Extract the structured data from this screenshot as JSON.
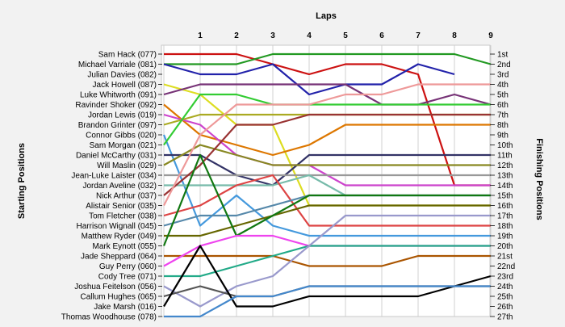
{
  "chart_data": {
    "type": "line",
    "title": "Laps",
    "ylabel_left": "Starting Positions",
    "ylabel_right": "Finishing Positions",
    "x": [
      0,
      1,
      2,
      3,
      4,
      5,
      6,
      7,
      8,
      9
    ],
    "x_tick_labels": [
      "",
      "1",
      "2",
      "3",
      "4",
      "5",
      "6",
      "7",
      "8",
      "9"
    ],
    "y_range": [
      1,
      27
    ],
    "grid": "vertical",
    "start_labels": [
      "Sam Hack (077)",
      "Michael Varriale (081)",
      "Julian Davies (082)",
      "Jack Howell (087)",
      "Luke Whitworth (091)",
      "Ravinder Shoker (092)",
      "Jordan Lewis (019)",
      "Brandon Grinter (097)",
      "Connor Gibbs (020)",
      "Sam Morgan (021)",
      "Daniel McCarthy (031)",
      "Will Maslin (029)",
      "Jean-Luke Laister (034)",
      "Jordan Aveline (032)",
      "Nick Arthur (037)",
      "Alistair Senior (035)",
      "Tom Fletcher (038)",
      "Harrison Wignall (045)",
      "Matthew Ryder (049)",
      "Mark Eynott (055)",
      "Jade Sheppard (064)",
      "Guy Perry (060)",
      "Cody Tree (071)",
      "Joshua Feitelson (056)",
      "Callum Hughes (065)",
      "Jake Marsh (016)",
      "Thomas Woodhouse (078)"
    ],
    "finish_labels": [
      "1st",
      "2nd",
      "3rd",
      "4th",
      "5th",
      "6th",
      "7th",
      "8th",
      "9th",
      "10th",
      "11th",
      "12th",
      "13th",
      "14th",
      "15th",
      "16th",
      "17th",
      "18th",
      "19th",
      "20th",
      "21st",
      "22nd",
      "23rd",
      "24th",
      "25th",
      "26th",
      "27th"
    ],
    "series": [
      {
        "start": 1,
        "color": "#cc1111",
        "values": [
          1,
          1,
          1,
          2,
          3,
          2,
          2,
          3,
          14,
          14
        ]
      },
      {
        "start": 2,
        "color": "#229922",
        "values": [
          2,
          2,
          2,
          1,
          1,
          1,
          1,
          1,
          1,
          2
        ]
      },
      {
        "start": 3,
        "color": "#2222aa",
        "values": [
          2,
          3,
          3,
          2,
          5,
          4,
          4,
          2,
          3,
          null
        ]
      },
      {
        "start": 4,
        "color": "#dddd22",
        "values": [
          4,
          5,
          8,
          8,
          16,
          16,
          16,
          16,
          16,
          16
        ]
      },
      {
        "start": 5,
        "color": "#773377",
        "values": [
          5,
          4,
          4,
          4,
          4,
          4,
          6,
          6,
          5,
          6
        ]
      },
      {
        "start": 6,
        "color": "#dd7700",
        "values": [
          6,
          9,
          10,
          11,
          10,
          8,
          8,
          8,
          8,
          8
        ]
      },
      {
        "start": 7,
        "color": "#cc44cc",
        "values": [
          7,
          8,
          11,
          12,
          12,
          14,
          14,
          14,
          14,
          14
        ]
      },
      {
        "start": 8,
        "color": "#aaaa22",
        "values": [
          8,
          7,
          7,
          7,
          7,
          7,
          7,
          7,
          7,
          7
        ]
      },
      {
        "start": 9,
        "color": "#4499dd",
        "values": [
          9,
          18,
          15,
          18,
          19,
          19,
          19,
          19,
          19,
          19
        ]
      },
      {
        "start": 10,
        "color": "#33cc33",
        "values": [
          10,
          5,
          5,
          6,
          6,
          6,
          6,
          6,
          6,
          6
        ]
      },
      {
        "start": 11,
        "color": "#333366",
        "values": [
          11,
          11,
          13,
          14,
          11,
          11,
          11,
          11,
          11,
          11
        ]
      },
      {
        "start": 12,
        "color": "#888822",
        "values": [
          12,
          10,
          11,
          12,
          12,
          12,
          12,
          12,
          12,
          12
        ]
      },
      {
        "start": 13,
        "color": "#999999",
        "values": [
          13,
          13,
          13,
          13,
          13,
          13,
          13,
          13,
          13,
          13
        ]
      },
      {
        "start": 14,
        "color": "#77bbaa",
        "values": [
          14,
          14,
          14,
          14,
          13,
          15,
          15,
          15,
          15,
          15
        ]
      },
      {
        "start": 15,
        "color": "#993333",
        "values": [
          15,
          12,
          8,
          8,
          7,
          7,
          7,
          7,
          7,
          7
        ]
      },
      {
        "start": 16,
        "color": "#ee9999",
        "values": [
          16,
          9,
          6,
          6,
          6,
          5,
          5,
          4,
          4,
          4
        ]
      },
      {
        "start": 17,
        "color": "#dd4444",
        "values": [
          17,
          16,
          14,
          13,
          18,
          18,
          18,
          18,
          18,
          18
        ]
      },
      {
        "start": 18,
        "color": "#5588aa",
        "values": [
          18,
          17,
          17,
          16,
          15,
          15,
          15,
          15,
          15,
          15
        ]
      },
      {
        "start": 19,
        "color": "#666600",
        "values": [
          19,
          19,
          18,
          17,
          16,
          16,
          16,
          16,
          16,
          16
        ]
      },
      {
        "start": 20,
        "color": "#117711",
        "values": [
          20,
          11,
          19,
          17,
          15,
          15,
          15,
          15,
          15,
          15
        ]
      },
      {
        "start": 21,
        "color": "#aa5500",
        "values": [
          21,
          21,
          21,
          21,
          22,
          22,
          22,
          21,
          21,
          21
        ]
      },
      {
        "start": 22,
        "color": "#ee44ee",
        "values": [
          22,
          20,
          19,
          19,
          20,
          20,
          20,
          20,
          20,
          20
        ]
      },
      {
        "start": 23,
        "color": "#22aa88",
        "values": [
          23,
          23,
          22,
          21,
          20,
          20,
          20,
          20,
          20,
          20
        ]
      },
      {
        "start": 24,
        "color": "#9999cc",
        "values": [
          24,
          26,
          24,
          23,
          20,
          17,
          17,
          17,
          17,
          17
        ]
      },
      {
        "start": 25,
        "color": "#555555",
        "values": [
          25,
          24,
          25,
          25,
          24,
          24,
          24,
          24,
          24,
          24
        ]
      },
      {
        "start": 26,
        "color": "#000000",
        "values": [
          26,
          20,
          26,
          26,
          25,
          25,
          25,
          25,
          24,
          23
        ]
      },
      {
        "start": 27,
        "color": "#4488cc",
        "values": [
          27,
          27,
          25,
          25,
          24,
          24,
          24,
          24,
          24,
          24
        ]
      }
    ]
  }
}
